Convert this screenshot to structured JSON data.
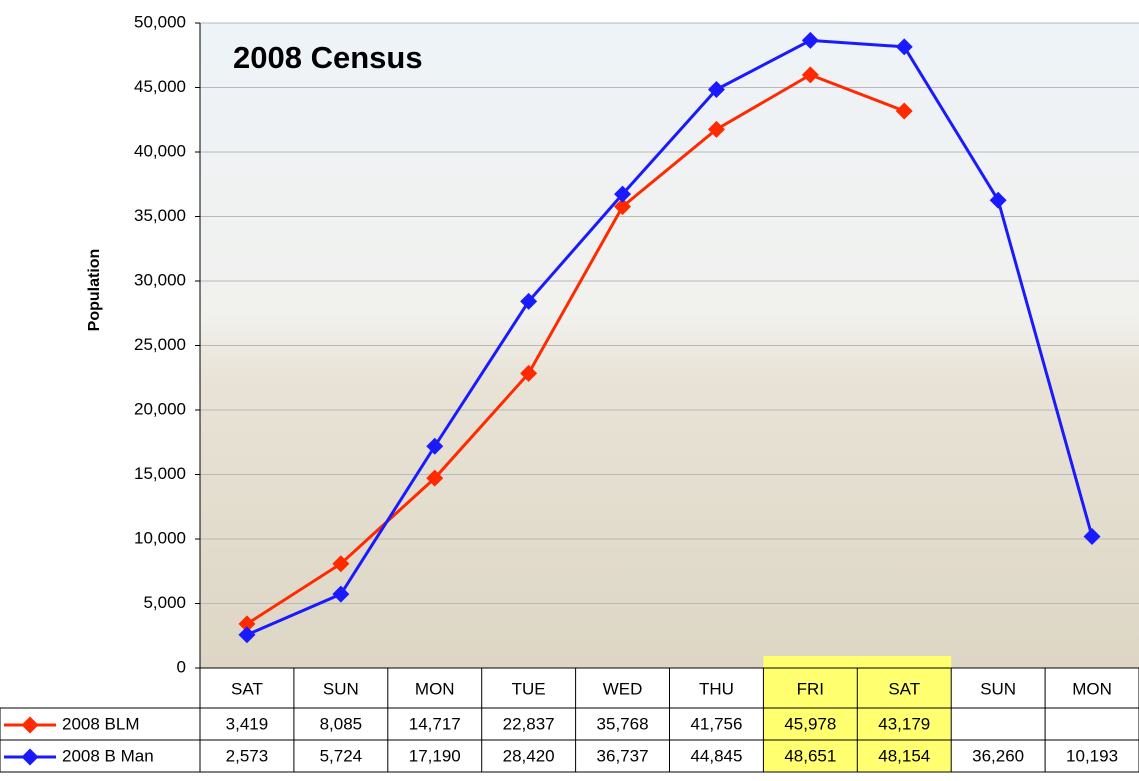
{
  "chart_data": {
    "type": "line",
    "title": "2008 Census",
    "y_label": "Population",
    "categories": [
      "SAT",
      "SUN",
      "MON",
      "TUE",
      "WED",
      "THU",
      "FRI",
      "SAT",
      "SUN",
      "MON"
    ],
    "series": [
      {
        "name": "2008 BLM",
        "color": "#ff2a00",
        "values": [
          3419,
          8085,
          14717,
          22837,
          35768,
          41756,
          45978,
          43179,
          null,
          null
        ],
        "value_labels": [
          "3,419",
          "8,085",
          "14,717",
          "22,837",
          "35,768",
          "41,756",
          "45,978",
          "43,179",
          null,
          null
        ]
      },
      {
        "name": "2008 B Man",
        "color": "#1a1aff",
        "values": [
          2573,
          5724,
          17190,
          28420,
          36737,
          44845,
          48651,
          48154,
          36260,
          10193
        ],
        "value_labels": [
          "2,573",
          "5,724",
          "17,190",
          "28,420",
          "36,737",
          "44,845",
          "48,651",
          "48,154",
          "36,260",
          "10,193"
        ]
      }
    ],
    "ylim": [
      0,
      50000
    ],
    "yticks": [
      0,
      {
        "value": 5000,
        "label": "5,000"
      },
      {
        "value": 10000,
        "label": "10,000"
      },
      {
        "value": 15000,
        "label": "15,000"
      },
      {
        "value": 20000,
        "label": "20,000"
      },
      {
        "value": 25000,
        "label": "25,000"
      },
      {
        "value": 30000,
        "label": "30,000"
      },
      {
        "value": 35000,
        "label": "35,000"
      },
      {
        "value": 40000,
        "label": "40,000"
      },
      {
        "value": 45000,
        "label": "45,000"
      },
      {
        "value": 50000,
        "label": "50,000"
      }
    ],
    "grid": true,
    "highlight": {
      "indices": [
        6,
        7
      ],
      "color": "#ffff70"
    }
  }
}
